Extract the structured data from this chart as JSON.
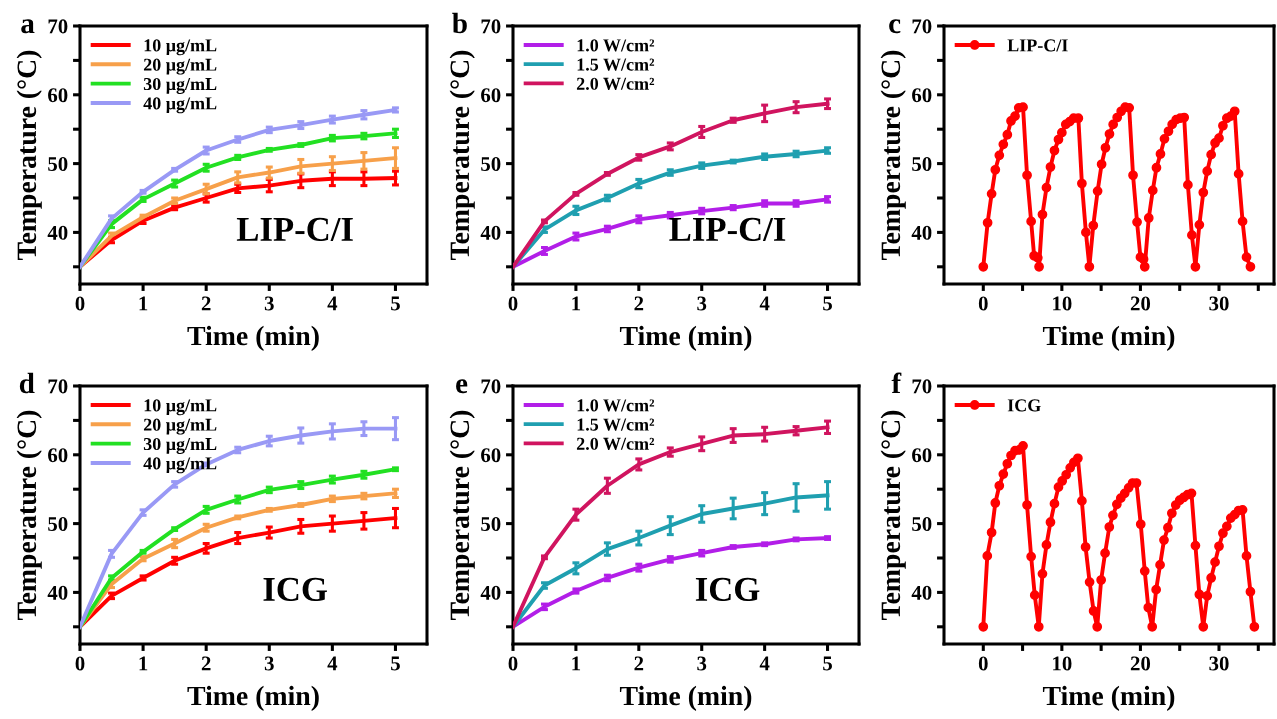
{
  "chart_data": [
    {
      "type": "line",
      "xlabel": "Time (min)",
      "ylabel": "Temperature (°C)",
      "annotations": [
        "a",
        "LIP-C/I"
      ],
      "legend": "top left",
      "xlim": [
        0,
        5.5
      ],
      "ylim": [
        32.5,
        70
      ],
      "xticks": [
        0,
        1,
        2,
        3,
        4,
        5
      ],
      "yticks": [
        {
          "value": 35,
          "label": null
        },
        40,
        {
          "value": 45,
          "label": null
        },
        50,
        {
          "value": 55,
          "label": null
        },
        60,
        {
          "value": 65,
          "label": null
        },
        70
      ],
      "x": [
        0,
        0.5,
        1,
        1.5,
        2,
        2.5,
        3,
        3.5,
        4,
        4.5,
        5
      ],
      "series": [
        {
          "name": "10 μg/mL",
          "color": "#ff0000",
          "values": [
            35,
            38.9,
            41.7,
            43.6,
            45.0,
            46.4,
            46.8,
            47.5,
            47.8,
            47.8,
            47.9
          ],
          "errors": [
            null,
            0.4,
            0.4,
            0.3,
            0.6,
            0.6,
            0.9,
            1.0,
            1.0,
            1.0,
            1.0
          ]
        },
        {
          "name": "20 μg/mL",
          "color": "#f7a04a",
          "values": [
            35,
            39.5,
            42.2,
            44.6,
            46.3,
            48.0,
            48.7,
            49.6,
            50.0,
            50.4,
            50.8
          ],
          "errors": [
            null,
            0.4,
            0.3,
            0.4,
            0.7,
            0.8,
            0.8,
            1.0,
            1.0,
            1.2,
            1.5
          ]
        },
        {
          "name": "30 μg/mL",
          "color": "#22e022",
          "values": [
            35,
            41.2,
            44.8,
            47.1,
            49.4,
            50.9,
            52.0,
            52.7,
            53.7,
            54.0,
            54.4
          ],
          "errors": [
            null,
            0.5,
            0.3,
            0.5,
            0.5,
            0.3,
            0.2,
            0.2,
            0.4,
            0.4,
            0.6
          ]
        },
        {
          "name": "40 μg/mL",
          "color": "#9999f5",
          "values": [
            35,
            42.0,
            45.9,
            49.1,
            51.9,
            53.5,
            54.9,
            55.6,
            56.4,
            57.1,
            57.8
          ],
          "errors": [
            null,
            0.4,
            0.2,
            0.2,
            0.5,
            0.4,
            0.4,
            0.5,
            0.5,
            0.6,
            0.3
          ]
        }
      ]
    },
    {
      "type": "line",
      "xlabel": "Time (min)",
      "ylabel": "Temperature (°C)",
      "annotations": [
        "b",
        "LIP-C/I"
      ],
      "legend": "top left",
      "xlim": [
        0,
        5.5
      ],
      "ylim": [
        32.5,
        70
      ],
      "xticks": [
        0,
        1,
        2,
        3,
        4,
        5
      ],
      "yticks": [
        {
          "value": 35,
          "label": null
        },
        40,
        {
          "value": 45,
          "label": null
        },
        50,
        {
          "value": 55,
          "label": null
        },
        60,
        {
          "value": 65,
          "label": null
        },
        70
      ],
      "x": [
        0,
        0.5,
        1,
        1.5,
        2,
        2.5,
        3,
        3.5,
        4,
        4.5,
        5
      ],
      "series": [
        {
          "name": "1.0 W/cm²",
          "color": "#b21ee8",
          "values": [
            35,
            37.3,
            39.4,
            40.5,
            41.9,
            42.5,
            43.1,
            43.6,
            44.2,
            44.2,
            44.8
          ],
          "errors": [
            null,
            0.5,
            0.5,
            0.4,
            0.5,
            0.4,
            0.4,
            0.3,
            0.4,
            0.4,
            0.4
          ]
        },
        {
          "name": "1.5 W/cm²",
          "color": "#1f9fb0",
          "values": [
            35,
            40.4,
            43.2,
            45.0,
            47.1,
            48.7,
            49.7,
            50.3,
            51.0,
            51.4,
            51.9
          ],
          "errors": [
            null,
            0.4,
            0.6,
            0.4,
            0.6,
            0.4,
            0.4,
            0.2,
            0.4,
            0.4,
            0.4
          ]
        },
        {
          "name": "2.0 W/cm²",
          "color": "#d0145f",
          "values": [
            35,
            41.6,
            45.6,
            48.5,
            50.9,
            52.5,
            54.6,
            56.3,
            57.3,
            58.2,
            58.7
          ],
          "errors": [
            null,
            0.2,
            0.2,
            0.2,
            0.4,
            0.5,
            0.8,
            0.3,
            1.2,
            0.8,
            0.7
          ]
        }
      ]
    },
    {
      "type": "line",
      "xlabel": "Time (min)",
      "ylabel": "Temperature (°C)",
      "annotations": [
        "c"
      ],
      "legend": "top left",
      "marker": "circle",
      "xlim": [
        -5,
        37
      ],
      "ylim": [
        32.5,
        70
      ],
      "xticks": [
        0,
        {
          "value": 5,
          "label": null
        },
        10,
        {
          "value": 15,
          "label": null
        },
        20,
        {
          "value": 25,
          "label": null
        },
        30,
        {
          "value": 35,
          "label": null
        }
      ],
      "yticks": [
        {
          "value": 35,
          "label": null
        },
        40,
        {
          "value": 45,
          "label": null
        },
        50,
        {
          "value": 55,
          "label": null
        },
        60,
        {
          "value": 65,
          "label": null
        },
        70
      ],
      "series": [
        {
          "name": "LIP-C/I",
          "color": "#ff0000",
          "x": [
            0,
            0.55,
            1.06,
            1.53,
            2.04,
            2.55,
            3.06,
            3.53,
            4.04,
            4.51,
            5.06,
            5.57,
            6.09,
            6.47,
            6.94,
            7.1,
            7.53,
            8.04,
            8.55,
            9.06,
            9.57,
            10.0,
            10.5,
            11.0,
            11.5,
            12.1,
            12.55,
            13.06,
            13.5,
            14.0,
            14.55,
            15.06,
            15.55,
            16.06,
            16.53,
            17.04,
            17.55,
            18.06,
            18.57,
            19.06,
            19.57,
            20.0,
            20.4,
            20.55,
            21.06,
            21.57,
            22.04,
            22.55,
            23.06,
            23.57,
            24.04,
            24.55,
            25.06,
            25.57,
            26.04,
            26.55,
            27.0,
            27.5,
            28.0,
            28.5,
            29.0,
            29.5,
            30.0,
            30.5,
            31.0,
            31.5,
            32.0,
            32.5,
            33.0,
            33.5,
            34.0
          ],
          "values": [
            35.0,
            41.4,
            45.6,
            49.1,
            51.2,
            52.8,
            54.2,
            56.2,
            56.9,
            58.1,
            58.2,
            48.3,
            41.6,
            36.6,
            36.3,
            35.0,
            42.6,
            46.5,
            49.5,
            51.9,
            53.5,
            54.5,
            55.7,
            56.1,
            56.6,
            56.6,
            47.1,
            40.0,
            35.0,
            41.0,
            46.0,
            49.9,
            52.3,
            54.3,
            55.7,
            56.7,
            57.6,
            58.2,
            58.1,
            48.3,
            41.5,
            36.4,
            36.1,
            35.0,
            42.1,
            46.1,
            49.4,
            51.4,
            53.6,
            54.7,
            55.7,
            56.4,
            56.6,
            56.7,
            46.9,
            39.6,
            35.0,
            41.1,
            45.8,
            48.9,
            51.3,
            53.0,
            53.7,
            55.5,
            56.6,
            56.9,
            57.6,
            48.5,
            41.6,
            36.4,
            35.0
          ]
        }
      ]
    },
    {
      "type": "line",
      "xlabel": "Time (min)",
      "ylabel": "Temperature (°C)",
      "annotations": [
        "d",
        "ICG"
      ],
      "legend": "top left",
      "xlim": [
        0,
        5.5
      ],
      "ylim": [
        32.5,
        70
      ],
      "xticks": [
        0,
        1,
        2,
        3,
        4,
        5
      ],
      "yticks": [
        {
          "value": 35,
          "label": null
        },
        40,
        {
          "value": 45,
          "label": null
        },
        50,
        {
          "value": 55,
          "label": null
        },
        60,
        {
          "value": 65,
          "label": null
        },
        70
      ],
      "x": [
        0,
        0.5,
        1,
        1.5,
        2,
        2.5,
        3,
        3.5,
        4,
        4.5,
        5
      ],
      "series": [
        {
          "name": "10 μg/mL",
          "color": "#ff0000",
          "values": [
            35,
            39.5,
            42.1,
            44.6,
            46.4,
            47.9,
            48.7,
            49.6,
            50.0,
            50.4,
            50.8
          ],
          "errors": [
            null,
            0.4,
            0.3,
            0.5,
            0.7,
            0.8,
            0.8,
            1.0,
            1.1,
            1.2,
            1.4
          ]
        },
        {
          "name": "20 μg/mL",
          "color": "#f7a04a",
          "values": [
            35,
            41.2,
            44.9,
            47.1,
            49.4,
            50.9,
            52.0,
            52.7,
            53.6,
            54.0,
            54.4
          ],
          "errors": [
            null,
            0.5,
            0.3,
            0.6,
            0.5,
            0.2,
            0.2,
            0.2,
            0.4,
            0.4,
            0.6
          ]
        },
        {
          "name": "30 μg/mL",
          "color": "#22e022",
          "values": [
            35,
            42.1,
            45.9,
            49.2,
            52.0,
            53.5,
            54.9,
            55.6,
            56.4,
            57.1,
            57.9
          ],
          "errors": [
            null,
            0.3,
            0.2,
            0.2,
            0.5,
            0.5,
            0.4,
            0.5,
            0.5,
            0.5,
            0.2
          ]
        },
        {
          "name": "40 μg/mL",
          "color": "#9999f5",
          "values": [
            35,
            45.6,
            51.6,
            55.7,
            58.6,
            60.7,
            62.0,
            62.8,
            63.4,
            63.8,
            63.8
          ],
          "errors": [
            null,
            0.5,
            0.4,
            0.4,
            0.2,
            0.4,
            0.7,
            1.1,
            1.1,
            1.0,
            1.6
          ]
        }
      ]
    },
    {
      "type": "line",
      "xlabel": "Time (min)",
      "ylabel": "Temperature (°C)",
      "annotations": [
        "e",
        "ICG"
      ],
      "legend": "top left",
      "xlim": [
        0,
        5.5
      ],
      "ylim": [
        32.5,
        70
      ],
      "xticks": [
        0,
        1,
        2,
        3,
        4,
        5
      ],
      "yticks": [
        {
          "value": 35,
          "label": null
        },
        40,
        {
          "value": 45,
          "label": null
        },
        50,
        {
          "value": 55,
          "label": null
        },
        60,
        {
          "value": 65,
          "label": null
        },
        70
      ],
      "x": [
        0,
        0.5,
        1,
        1.5,
        2,
        2.5,
        3,
        3.5,
        4,
        4.5,
        5
      ],
      "series": [
        {
          "name": "1.0 W/cm²",
          "color": "#b21ee8",
          "values": [
            35,
            37.9,
            40.2,
            42.1,
            43.6,
            44.8,
            45.7,
            46.6,
            47.0,
            47.7,
            47.9
          ],
          "errors": [
            null,
            0.4,
            0.3,
            0.4,
            0.5,
            0.4,
            0.4,
            0.2,
            0.2,
            0.2,
            0.2
          ]
        },
        {
          "name": "1.5 W/cm²",
          "color": "#1f9fb0",
          "values": [
            35,
            41.0,
            43.5,
            46.3,
            47.9,
            49.7,
            51.4,
            52.2,
            52.9,
            53.8,
            54.1
          ],
          "errors": [
            null,
            0.4,
            0.8,
            0.9,
            1.0,
            1.3,
            1.2,
            1.5,
            1.6,
            2.0,
            2.0
          ]
        },
        {
          "name": "2.0 W/cm²",
          "color": "#d0145f",
          "values": [
            35,
            45.1,
            51.3,
            55.5,
            58.6,
            60.4,
            61.6,
            62.8,
            63.0,
            63.5,
            64.0
          ],
          "errors": [
            null,
            0.2,
            0.8,
            1.1,
            0.8,
            0.6,
            1.0,
            1.0,
            1.0,
            0.6,
            0.9
          ]
        }
      ]
    },
    {
      "type": "line",
      "xlabel": "Time (min)",
      "ylabel": "Temperature (°C)",
      "annotations": [
        "f"
      ],
      "legend": "top left",
      "marker": "circle",
      "xlim": [
        -5,
        37
      ],
      "ylim": [
        32.5,
        70
      ],
      "xticks": [
        0,
        {
          "value": 5,
          "label": null
        },
        10,
        {
          "value": 15,
          "label": null
        },
        20,
        {
          "value": 25,
          "label": null
        },
        30,
        {
          "value": 35,
          "label": null
        }
      ],
      "yticks": [
        {
          "value": 35,
          "label": null
        },
        40,
        {
          "value": 45,
          "label": null
        },
        50,
        {
          "value": 55,
          "label": null
        },
        60,
        {
          "value": 65,
          "label": null
        },
        70
      ],
      "series": [
        {
          "name": "ICG",
          "color": "#ff0000",
          "x": [
            0,
            0.51,
            1.06,
            1.53,
            2.04,
            2.55,
            3.06,
            3.53,
            4.04,
            4.55,
            5.06,
            5.57,
            6.09,
            6.55,
            7.06,
            7.53,
            8.04,
            8.55,
            9.06,
            9.57,
            10.04,
            10.55,
            11.06,
            11.53,
            12.04,
            12.55,
            13.02,
            13.53,
            14.04,
            14.5,
            15.0,
            15.5,
            16.04,
            16.5,
            17.0,
            17.5,
            18.0,
            18.5,
            19.0,
            19.5,
            20.04,
            20.55,
            21.0,
            21.5,
            22.0,
            22.5,
            23.0,
            23.5,
            24.0,
            24.5,
            25.0,
            25.5,
            26.0,
            26.5,
            27.0,
            27.5,
            28.0,
            28.5,
            29.0,
            29.5,
            30.0,
            30.5,
            31.0,
            31.5,
            32.0,
            32.5,
            33.0,
            33.5,
            34.0,
            34.5
          ],
          "values": [
            35.0,
            45.3,
            48.7,
            53.0,
            55.5,
            57.2,
            58.7,
            59.9,
            60.6,
            60.7,
            61.3,
            52.7,
            45.2,
            39.6,
            35.0,
            42.7,
            46.9,
            50.2,
            52.9,
            55.3,
            56.2,
            57.1,
            58.1,
            58.9,
            59.5,
            53.3,
            46.6,
            41.5,
            37.3,
            35.0,
            41.8,
            45.7,
            49.5,
            51.2,
            52.8,
            53.7,
            54.4,
            55.2,
            55.9,
            55.9,
            49.9,
            43.1,
            37.8,
            35.0,
            40.4,
            44.0,
            47.6,
            49.4,
            51.5,
            52.7,
            53.4,
            53.8,
            54.2,
            54.4,
            46.8,
            39.7,
            35.0,
            39.5,
            42.1,
            44.4,
            46.7,
            48.6,
            49.6,
            50.8,
            51.3,
            51.9,
            52.0,
            45.3,
            40.1,
            35.0
          ]
        }
      ]
    }
  ]
}
